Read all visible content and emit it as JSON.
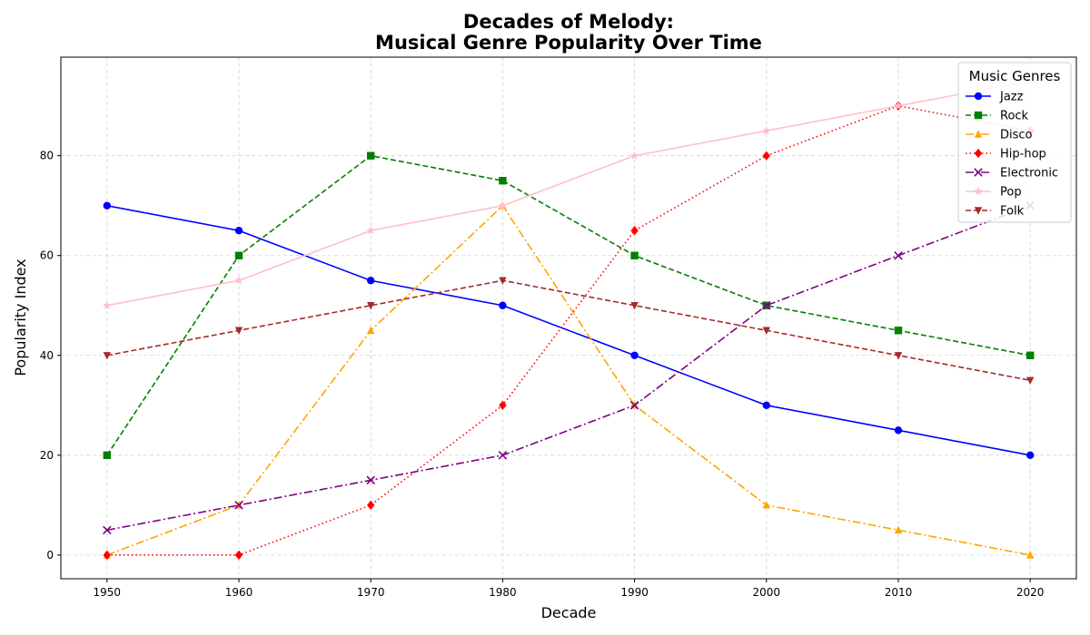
{
  "chart_data": {
    "type": "line",
    "title": "Decades of Melody:",
    "subtitle": "Musical Genre Popularity Over Time",
    "xlabel": "Decade",
    "ylabel": "Popularity Index",
    "x": [
      1950,
      1960,
      1970,
      1980,
      1990,
      2000,
      2010,
      2020
    ],
    "xlim": [
      1946.5,
      2023.5
    ],
    "ylim": [
      -4.75,
      99.75
    ],
    "yticks": [
      0,
      20,
      40,
      60,
      80
    ],
    "xticks": [
      1950,
      1960,
      1970,
      1980,
      1990,
      2000,
      2010,
      2020
    ],
    "grid": true,
    "legend": {
      "title": "Music Genres",
      "placement": "top-right"
    },
    "series": [
      {
        "name": "Jazz",
        "color": "#0000ff",
        "dash": "solid",
        "marker": "circle",
        "values": [
          70,
          65,
          55,
          50,
          40,
          30,
          25,
          20
        ]
      },
      {
        "name": "Rock",
        "color": "#008000",
        "dash": "dashed",
        "marker": "square",
        "values": [
          20,
          60,
          80,
          75,
          60,
          50,
          45,
          40
        ]
      },
      {
        "name": "Disco",
        "color": "#ffa500",
        "dash": "dashdot",
        "marker": "triangle-up",
        "values": [
          0,
          10,
          45,
          70,
          30,
          10,
          5,
          0
        ]
      },
      {
        "name": "Hip-hop",
        "color": "#ff0000",
        "dash": "dotted",
        "marker": "diamond",
        "values": [
          0,
          0,
          10,
          30,
          65,
          80,
          90,
          85
        ]
      },
      {
        "name": "Electronic",
        "color": "#800080",
        "dash": "dashdot",
        "marker": "x",
        "values": [
          5,
          10,
          15,
          20,
          30,
          50,
          60,
          70
        ]
      },
      {
        "name": "Pop",
        "color": "#ffc0cb",
        "dash": "solid",
        "marker": "star",
        "values": [
          50,
          55,
          65,
          70,
          80,
          85,
          90,
          95
        ]
      },
      {
        "name": "Folk",
        "color": "#a52a2a",
        "dash": "dashed",
        "marker": "triangle-down",
        "values": [
          40,
          45,
          50,
          55,
          50,
          45,
          40,
          35
        ]
      }
    ]
  }
}
